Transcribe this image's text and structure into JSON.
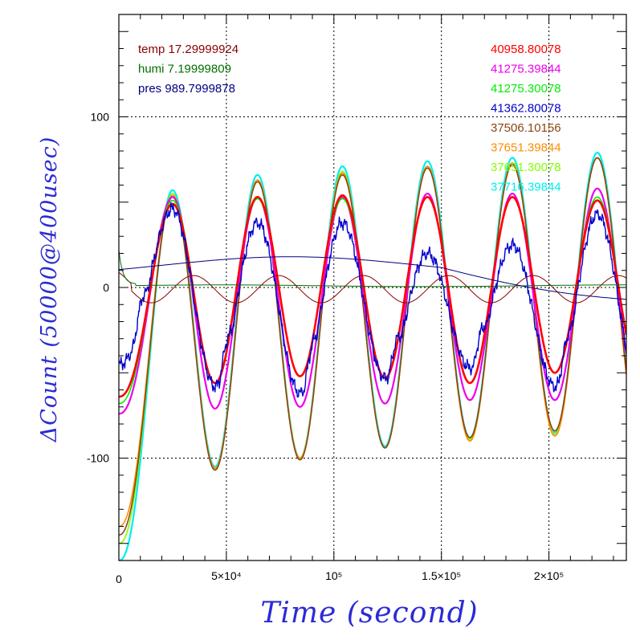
{
  "chart_data": {
    "type": "line",
    "xlabel": "Time (second)",
    "ylabel": "ΔCount (50000@400usec)",
    "xlim": [
      0,
      236000
    ],
    "ylim": [
      -160,
      160
    ],
    "grid": true,
    "x_ticks": [
      {
        "value": 0,
        "label": "0"
      },
      {
        "value": 50000,
        "label": "5×10⁴"
      },
      {
        "value": 100000,
        "label": "10⁵"
      },
      {
        "value": 150000,
        "label": "1.5×10⁵"
      },
      {
        "value": 200000,
        "label": "2×10⁵"
      }
    ],
    "y_ticks": [
      {
        "value": 100,
        "label": "100"
      },
      {
        "value": 0,
        "label": "0"
      },
      {
        "value": -100,
        "label": "-100"
      }
    ],
    "period": 39500,
    "legend_left": [
      {
        "text": "temp 17.29999924",
        "color": "#8b0000"
      },
      {
        "text": "humi 7.19999809",
        "color": "#007000"
      },
      {
        "text": "pres 989.7999878",
        "color": "#000080"
      }
    ],
    "legend_right": [
      {
        "text": "40958.80078",
        "color": "#ff0000"
      },
      {
        "text": "41275.39844",
        "color": "#ee00ee"
      },
      {
        "text": "41275.30078",
        "color": "#00ee00"
      },
      {
        "text": "41362.80078",
        "color": "#0000cc"
      },
      {
        "text": "37506.10156",
        "color": "#8b4513"
      },
      {
        "text": "37651.39844",
        "color": "#ff8c00"
      },
      {
        "text": "37651.30078",
        "color": "#7fff00"
      },
      {
        "text": "37716.39844",
        "color": "#00eeee"
      }
    ],
    "series": [
      {
        "name": "37716.39844",
        "color": "#00eeee",
        "width": 2.2,
        "start": -160,
        "peaks": [
          57,
          66,
          71,
          74,
          76,
          79
        ],
        "troughs": [
          -105,
          -100,
          -93,
          -88,
          -85
        ]
      },
      {
        "name": "37651.30078",
        "color": "#7fff00",
        "width": 1.6,
        "start": -150,
        "peaks": [
          55,
          63,
          68,
          71,
          73,
          76
        ],
        "troughs": [
          -106,
          -100,
          -94,
          -89,
          -86
        ]
      },
      {
        "name": "37651.39844",
        "color": "#ff8c00",
        "width": 1.6,
        "start": -140,
        "peaks": [
          54,
          63,
          67,
          71,
          73,
          76
        ],
        "troughs": [
          -106,
          -100,
          -94,
          -90,
          -87
        ]
      },
      {
        "name": "37506.10156",
        "color": "#8b4513",
        "width": 1.6,
        "start": -145,
        "peaks": [
          53,
          62,
          66,
          70,
          72,
          76
        ],
        "troughs": [
          -107,
          -101,
          -94,
          -88,
          -84
        ]
      },
      {
        "name": "41275.39844",
        "color": "#ee00ee",
        "width": 2.2,
        "start": -74,
        "peaks": [
          53,
          53,
          53,
          55,
          55,
          58
        ],
        "troughs": [
          -71,
          -70,
          -68,
          -66,
          -66
        ]
      },
      {
        "name": "41275.30078",
        "color": "#00ee00",
        "width": 1.6,
        "start": -68,
        "peaks": [
          51,
          52,
          52,
          53,
          53,
          53
        ],
        "troughs": [
          -56,
          -52,
          -53,
          -56,
          -50
        ]
      },
      {
        "name": "40958.80078",
        "color": "#ff0000",
        "width": 2.6,
        "start": -64,
        "peaks": [
          49,
          53,
          54,
          53,
          53,
          51
        ],
        "troughs": [
          -56,
          -52,
          -53,
          -56,
          -50
        ]
      },
      {
        "name": "41362.80078",
        "color": "#0000cc",
        "width": 1.4,
        "start": -45,
        "peaks": [
          46,
          38,
          38,
          20,
          25,
          43
        ],
        "troughs": [
          -58,
          -62,
          -53,
          -47,
          -58
        ],
        "noisy": true
      }
    ],
    "env_series": [
      {
        "name": "temp 17.29999924",
        "color": "#8b0000",
        "mode": "temp"
      },
      {
        "name": "humi 7.19999809",
        "color": "#007000",
        "mode": "humi"
      },
      {
        "name": "pres 989.7999878",
        "color": "#000080",
        "mode": "pres"
      }
    ]
  }
}
